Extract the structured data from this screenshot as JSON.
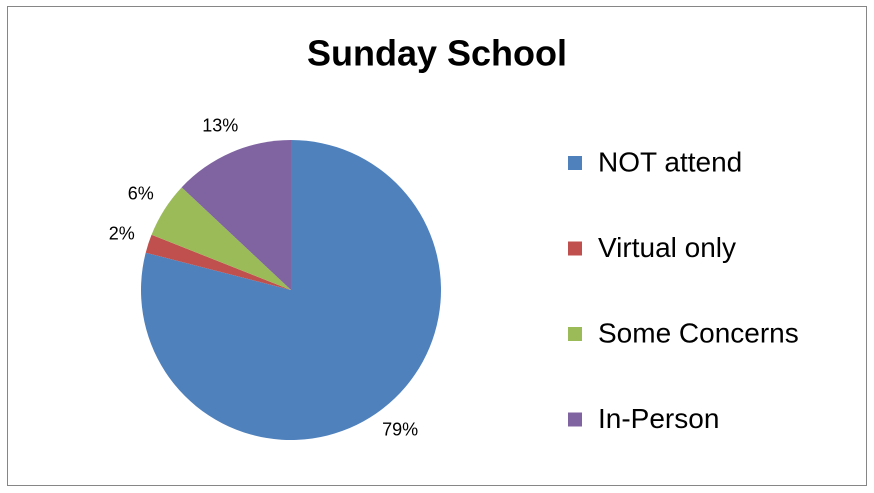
{
  "chart_data": {
    "type": "pie",
    "title": "Sunday School",
    "categories": [
      "NOT attend",
      "Virtual only",
      "Some Concerns",
      "In-Person"
    ],
    "values": [
      79,
      2,
      6,
      13
    ],
    "value_labels": [
      "79%",
      "2%",
      "6%",
      "13%"
    ],
    "colors": [
      "#4f81bd",
      "#c0504d",
      "#9bbb59",
      "#8064a2"
    ],
    "legend": "right"
  }
}
